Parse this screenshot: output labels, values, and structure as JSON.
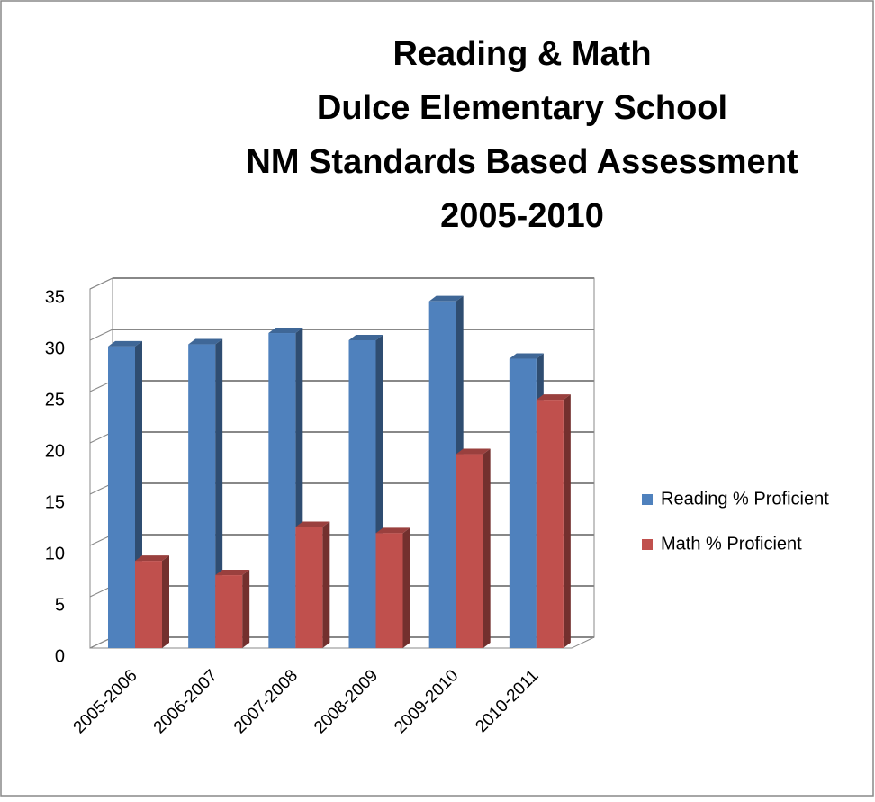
{
  "chart_data": {
    "type": "bar",
    "title": [
      "Reading & Math",
      "Dulce Elementary School",
      "NM Standards Based Assessment",
      "2005-2010"
    ],
    "categories": [
      "2005-2006",
      "2006-2007",
      "2007-2008",
      "2008-2009",
      "2009-2010",
      "2010-2011"
    ],
    "series": [
      {
        "name": "Reading % Proficient",
        "color": "#4f81bd",
        "values": [
          29.4,
          29.6,
          30.7,
          30.0,
          33.8,
          28.2
        ]
      },
      {
        "name": "Math % Proficient",
        "color": "#c0504d",
        "values": [
          8.5,
          7.1,
          11.8,
          11.2,
          18.9,
          24.2
        ]
      }
    ],
    "ylim": [
      0,
      35
    ],
    "yticks": [
      0,
      5,
      10,
      15,
      20,
      25,
      30,
      35
    ],
    "grid": true,
    "legend": "right"
  }
}
